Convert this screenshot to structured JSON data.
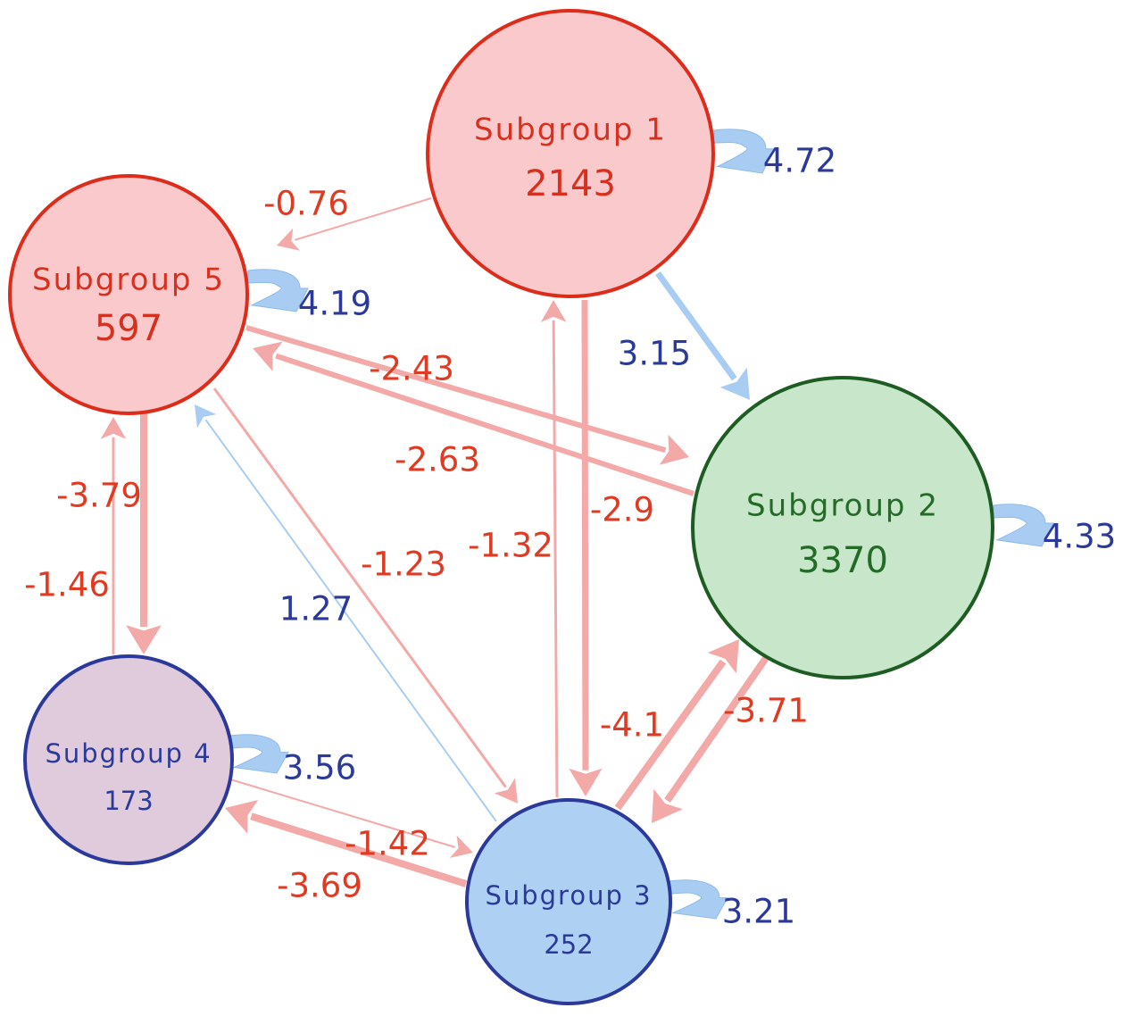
{
  "colors": {
    "neg_edge": "#f4a9a9",
    "neg_label": "#e03a22",
    "pos_edge": "#a9cdf2",
    "pos_label": "#2b3a9a",
    "red_fill": "#f9c9cc",
    "red_stroke": "#dd2c1a",
    "red_text": "#d8301f",
    "green_fill": "#c8e6c9",
    "green_stroke": "#1d5c22",
    "green_text": "#236b27",
    "purple_fill": "#e0cbdd",
    "purple_stroke": "#2b3a9a",
    "purple_text": "#2b3a9a",
    "blue_fill": "#aed1f3",
    "blue_stroke": "#2b3a9a",
    "blue_text": "#2b3a9a"
  },
  "nodes": [
    {
      "id": "1",
      "name": "Subgroup 1",
      "count": "2143",
      "color": "red"
    },
    {
      "id": "2",
      "name": "Subgroup 2",
      "count": "3370",
      "color": "green"
    },
    {
      "id": "3",
      "name": "Subgroup 3",
      "count": "252",
      "color": "blue"
    },
    {
      "id": "4",
      "name": "Subgroup 4",
      "count": "173",
      "color": "purple"
    },
    {
      "id": "5",
      "name": "Subgroup 5",
      "count": "597",
      "color": "red"
    }
  ],
  "self_loops": [
    {
      "node": "1",
      "label": "4.72"
    },
    {
      "node": "5",
      "label": "4.19"
    },
    {
      "node": "2",
      "label": "4.33"
    },
    {
      "node": "4",
      "label": "3.56"
    },
    {
      "node": "3",
      "label": "3.21"
    }
  ],
  "edges": [
    {
      "from": "1",
      "to": "5",
      "label": "-0.76"
    },
    {
      "from": "1",
      "to": "2",
      "label": "3.15"
    },
    {
      "from": "5",
      "to": "2",
      "label": "-2.43"
    },
    {
      "from": "2",
      "to": "5",
      "label": "-2.63"
    },
    {
      "from": "5",
      "to": "4",
      "label": "-3.79"
    },
    {
      "from": "4",
      "to": "5",
      "label": "-1.46"
    },
    {
      "from": "5",
      "to": "3",
      "label": "-1.23"
    },
    {
      "from": "3",
      "to": "5",
      "label": "1.27"
    },
    {
      "from": "3",
      "to": "1",
      "label": "-1.32"
    },
    {
      "from": "1",
      "to": "3",
      "label": "-2.9"
    },
    {
      "from": "3",
      "to": "2",
      "label": "-4.1"
    },
    {
      "from": "2",
      "to": "3",
      "label": "-3.71"
    },
    {
      "from": "4",
      "to": "3",
      "label": "-1.42"
    },
    {
      "from": "3",
      "to": "4",
      "label": "-3.69"
    }
  ]
}
